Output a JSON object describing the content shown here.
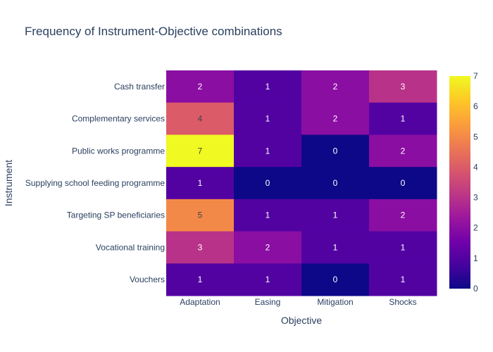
{
  "chart_data": {
    "type": "heatmap",
    "title": "Frequency of Instrument-Objective combinations",
    "xlabel": "Objective",
    "ylabel": "Instrument",
    "x": [
      "Adaptation",
      "Easing",
      "Mitigation",
      "Shocks"
    ],
    "y": [
      "Cash transfer",
      "Complementary services",
      "Public works programme",
      "Supplying school feeding programme",
      "Targeting SP beneficiaries",
      "Vocational training",
      "Vouchers"
    ],
    "z": [
      [
        2,
        1,
        2,
        3
      ],
      [
        4,
        1,
        2,
        1
      ],
      [
        7,
        1,
        0,
        2
      ],
      [
        1,
        0,
        0,
        0
      ],
      [
        5,
        1,
        1,
        2
      ],
      [
        3,
        2,
        1,
        1
      ],
      [
        1,
        1,
        0,
        1
      ]
    ],
    "zlim": [
      0,
      7
    ],
    "colorbar_ticks": [
      0,
      1,
      2,
      3,
      4,
      5,
      6,
      7
    ],
    "colorscale": [
      "#0d0887",
      "#46039f",
      "#7201a8",
      "#9c179e",
      "#bd3786",
      "#d8576b",
      "#ed7953",
      "#fb9f3a",
      "#fdca26",
      "#f0f921"
    ]
  }
}
